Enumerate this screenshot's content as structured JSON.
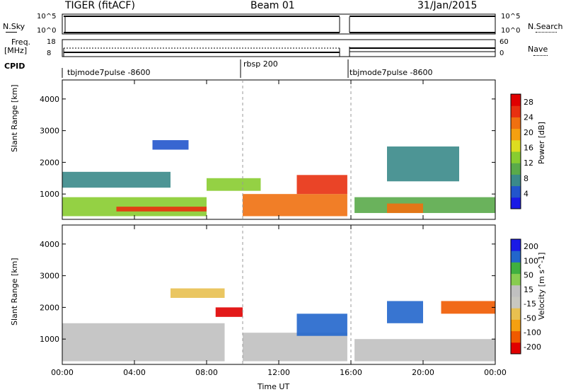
{
  "header": {
    "title": "TIGER (fitACF)",
    "beam": "Beam 01",
    "date": "31/Jan/2015"
  },
  "status_panels": {
    "nsky_label": "N.Sky",
    "nsky_ticks": [
      "10^5",
      "10^0"
    ],
    "nsearch_label": "N.Search",
    "nsearch_ticks": [
      "10^5",
      "10^0"
    ],
    "freq_label": "Freq.",
    "freq_unit": "[MHz]",
    "freq_ticks": [
      "18",
      "8"
    ],
    "nave_label": "Nave",
    "nave_ticks": [
      "60",
      "0"
    ],
    "cpid_label": "CPID",
    "cpid_segments": [
      "tbjmode7pulse -8600",
      "rbsp 200",
      "tbjmode7pulse -8600"
    ]
  },
  "chart_data": [
    {
      "type": "heatmap",
      "name": "power",
      "ylabel": "Slant Range [km]",
      "yticks": [
        "1000",
        "2000",
        "3000",
        "4000"
      ],
      "ylim": [
        200,
        4600
      ],
      "xlim": [
        0,
        24
      ],
      "xticks": [
        "00:00",
        "04:00",
        "08:00",
        "12:00",
        "16:00",
        "20:00",
        "00:00"
      ],
      "colorbar": {
        "label": "Power [dB]",
        "ticks": [
          "4",
          "8",
          "12",
          "16",
          "20",
          "24",
          "28"
        ],
        "range": [
          0,
          30
        ],
        "colors": [
          "#1a1ae6",
          "#2255cc",
          "#3a8a8a",
          "#5aaa4a",
          "#88cc30",
          "#dddd20",
          "#f5a010",
          "#f07010",
          "#e83010",
          "#e00000"
        ]
      },
      "bands": [
        {
          "t": [
            0,
            8
          ],
          "r": [
            300,
            900
          ],
          "value": 12
        },
        {
          "t": [
            0,
            6
          ],
          "r": [
            1200,
            1700
          ],
          "value": 6
        },
        {
          "t": [
            3,
            8
          ],
          "r": [
            450,
            600
          ],
          "value": 24
        },
        {
          "t": [
            8,
            11
          ],
          "r": [
            1100,
            1500
          ],
          "value": 14
        },
        {
          "t": [
            10,
            15.8
          ],
          "r": [
            300,
            1000
          ],
          "value": 22
        },
        {
          "t": [
            13,
            15.8
          ],
          "r": [
            1000,
            1600
          ],
          "value": 26
        },
        {
          "t": [
            16.2,
            24
          ],
          "r": [
            400,
            900
          ],
          "value": 10
        },
        {
          "t": [
            18,
            20
          ],
          "r": [
            400,
            700
          ],
          "value": 22
        },
        {
          "t": [
            18,
            22
          ],
          "r": [
            1400,
            2500
          ],
          "value": 8
        },
        {
          "t": [
            5,
            7
          ],
          "r": [
            2400,
            2700
          ],
          "value": 4
        }
      ]
    },
    {
      "type": "heatmap",
      "name": "velocity",
      "ylabel": "Slant Range [km]",
      "yticks": [
        "1000",
        "2000",
        "3000",
        "4000"
      ],
      "ylim": [
        200,
        4600
      ],
      "xlim": [
        0,
        24
      ],
      "xticks": [
        "00:00",
        "04:00",
        "08:00",
        "12:00",
        "16:00",
        "20:00",
        "00:00"
      ],
      "xlabel": "Time UT",
      "colorbar": {
        "label": "Velocity [m s^-1]",
        "ticks": [
          "200",
          "100",
          "50",
          "15",
          "-15",
          "-50",
          "-100",
          "-200"
        ],
        "range": [
          -250,
          250
        ],
        "colors": [
          "#e00000",
          "#f05a00",
          "#f5a010",
          "#e8c050",
          "#c8c8c0",
          "#c0c0c0",
          "#88cc50",
          "#40b040",
          "#2266cc",
          "#1a1ae6"
        ]
      },
      "bands": [
        {
          "t": [
            0,
            9
          ],
          "r": [
            300,
            1500
          ],
          "value": 0
        },
        {
          "t": [
            6,
            9
          ],
          "r": [
            2300,
            2600
          ],
          "value": -80
        },
        {
          "t": [
            8.5,
            10
          ],
          "r": [
            1700,
            2000
          ],
          "value": -220
        },
        {
          "t": [
            10,
            15.8
          ],
          "r": [
            300,
            1200
          ],
          "value": 0
        },
        {
          "t": [
            13,
            15.8
          ],
          "r": [
            1100,
            1800
          ],
          "value": 180
        },
        {
          "t": [
            16.2,
            24
          ],
          "r": [
            300,
            1000
          ],
          "value": 10
        },
        {
          "t": [
            18,
            20
          ],
          "r": [
            1500,
            2200
          ],
          "value": 160
        },
        {
          "t": [
            21,
            24
          ],
          "r": [
            1800,
            2200
          ],
          "value": -200
        }
      ]
    }
  ]
}
